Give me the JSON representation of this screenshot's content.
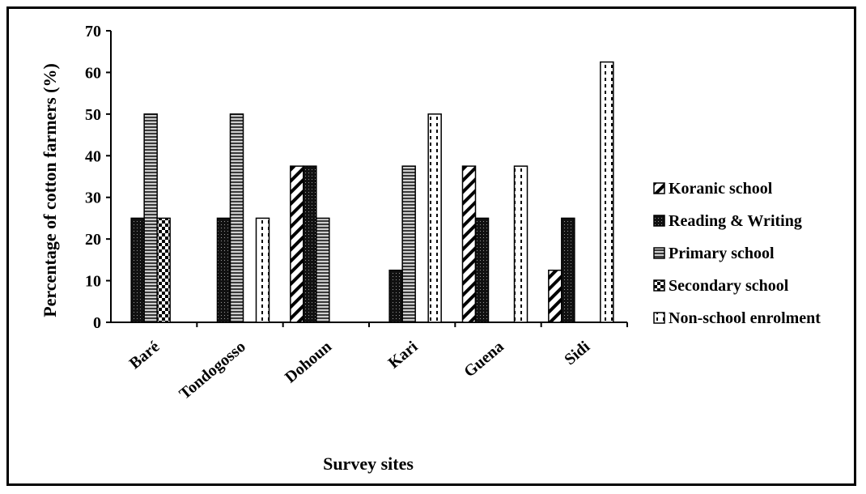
{
  "chart_data": {
    "type": "bar",
    "title": "",
    "xlabel": "Survey sites",
    "ylabel": "Percentage of cotton farmers (%)",
    "ylim": [
      0,
      70
    ],
    "yticks": [
      "0",
      "10",
      "20",
      "30",
      "40",
      "50",
      "60",
      "70"
    ],
    "grid": false,
    "legend_position": "right",
    "categories": [
      "Baré",
      "Tondogosso",
      "Dohoun",
      "Kari",
      "Guena",
      "Sidi"
    ],
    "series": [
      {
        "name": "Koranic school",
        "pattern": "diagonal-hatch",
        "values": [
          0,
          0,
          37.5,
          0,
          37.5,
          12.5
        ]
      },
      {
        "name": "Reading & Writing",
        "pattern": "dark-dots",
        "values": [
          25,
          25,
          37.5,
          12.5,
          25,
          25
        ]
      },
      {
        "name": "Primary school",
        "pattern": "horizontal-lines",
        "values": [
          50,
          50,
          25,
          37.5,
          0,
          0
        ]
      },
      {
        "name": "Secondary school",
        "pattern": "checker",
        "values": [
          25,
          0,
          0,
          0,
          0,
          0
        ]
      },
      {
        "name": "Non-school enrolment",
        "pattern": "vertical-dash",
        "values": [
          0,
          25,
          0,
          50,
          37.5,
          62.5
        ]
      }
    ]
  }
}
